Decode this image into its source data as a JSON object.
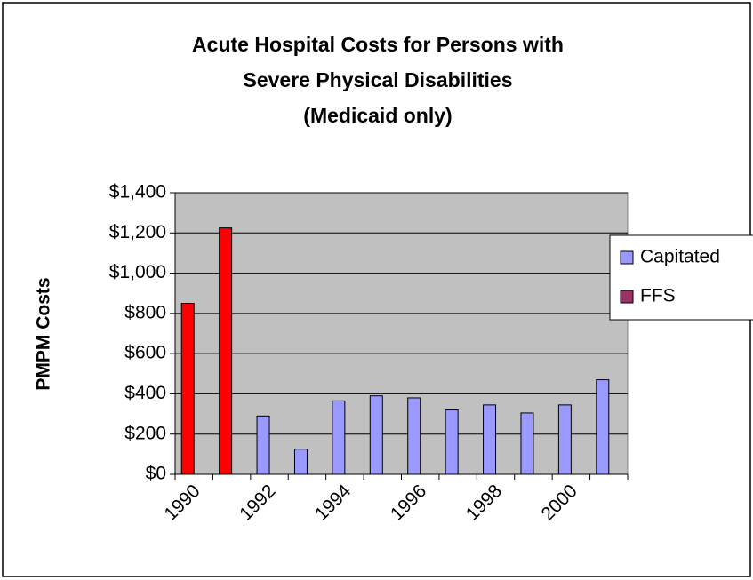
{
  "chart_data": {
    "type": "bar",
    "title": [
      "Acute Hospital Costs for Persons with",
      "Severe Physical Disabilities",
      "(Medicaid only)"
    ],
    "ylabel": "PMPM Costs",
    "categories": [
      "1990",
      null,
      "1992",
      null,
      "1994",
      null,
      "1996",
      null,
      "1998",
      null,
      "2000",
      null
    ],
    "series": [
      {
        "name": "Capitated",
        "color": "#9999ff",
        "values": [
          null,
          null,
          290,
          125,
          365,
          390,
          380,
          320,
          345,
          305,
          345,
          470
        ]
      },
      {
        "name": "FFS",
        "color": "#ff0000",
        "legend_color": "#993366",
        "values": [
          850,
          1225,
          null,
          null,
          null,
          null,
          null,
          null,
          null,
          null,
          null,
          null
        ]
      }
    ],
    "ylim": [
      0,
      1400
    ],
    "yticks": [
      {
        "value": 0,
        "label": "$0"
      },
      {
        "value": 200,
        "label": "$200"
      },
      {
        "value": 400,
        "label": "$400"
      },
      {
        "value": 600,
        "label": "$600"
      },
      {
        "value": 800,
        "label": "$800"
      },
      {
        "value": 1000,
        "label": "$1,000"
      },
      {
        "value": 1200,
        "label": "$1,200"
      },
      {
        "value": 1400,
        "label": "$1,400"
      }
    ],
    "grid": true,
    "plot_background": "#c0c0c0",
    "legend": "right"
  }
}
